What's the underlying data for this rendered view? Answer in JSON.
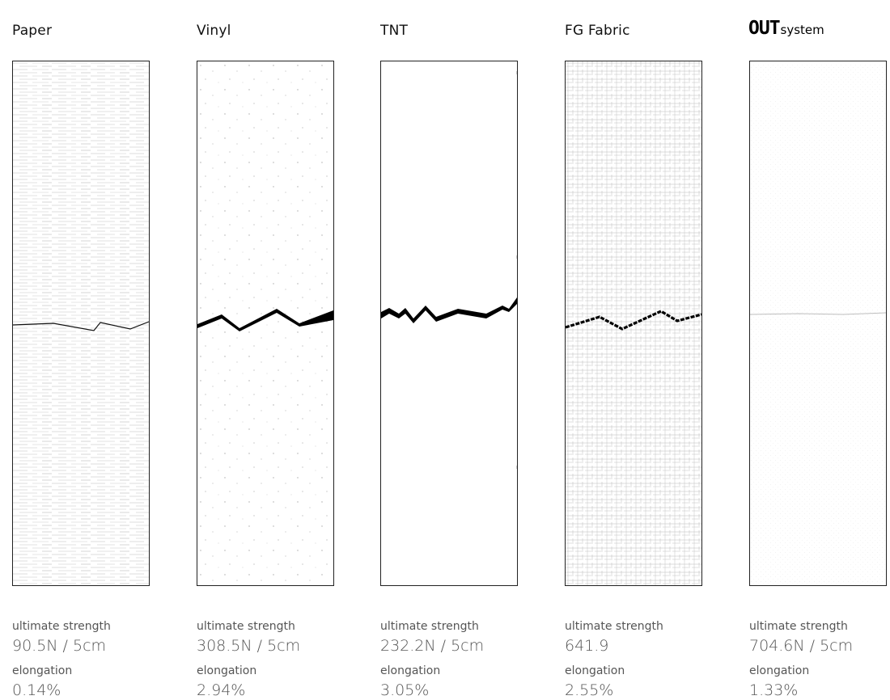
{
  "materials": [
    {
      "name": "Paper",
      "strength_label": "ultimate strength",
      "strength_value": "90.5N / 5cm",
      "elongation_label": "elongation",
      "elongation_value": "0.14%"
    },
    {
      "name": "Vinyl",
      "strength_label": "ultimate strength",
      "strength_value": "308.5N / 5cm",
      "elongation_label": "elongation",
      "elongation_value": "2.94%"
    },
    {
      "name": "TNT",
      "strength_label": "ultimate strength",
      "strength_value": "232.2N / 5cm",
      "elongation_label": "elongation",
      "elongation_value": "3.05%"
    },
    {
      "name": "FG Fabric",
      "strength_label": "ultimate strength",
      "strength_value": "641.9",
      "elongation_label": "elongation",
      "elongation_value": "2.55%"
    },
    {
      "brand_main": "OUT",
      "brand_sub": "system",
      "strength_label": "ultimate strength",
      "strength_value": "704.6N / 5cm",
      "elongation_label": "elongation",
      "elongation_value": "1.33%"
    }
  ]
}
